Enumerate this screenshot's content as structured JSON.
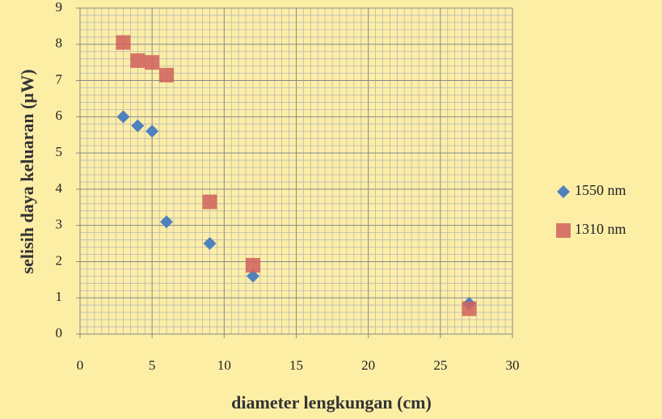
{
  "chart_data": {
    "type": "scatter",
    "xlabel": "diameter lengkungan (cm)",
    "ylabel": "selisih daya keluaran (µW)",
    "xlim": [
      0,
      30
    ],
    "xticks": [
      0,
      5,
      10,
      15,
      20,
      25,
      30
    ],
    "ylim": [
      0,
      9
    ],
    "yticks": [
      0,
      1,
      2,
      3,
      4,
      5,
      6,
      7,
      8,
      9
    ],
    "grid": true,
    "legend": "right",
    "series": [
      {
        "name": "1550 nm",
        "color": "#4f81bd",
        "marker": "diamond",
        "x": [
          3,
          4,
          5,
          6,
          9,
          12,
          27
        ],
        "values": [
          6.0,
          5.75,
          5.6,
          3.1,
          2.5,
          1.6,
          0.85
        ]
      },
      {
        "name": "1310 nm",
        "color": "#d0605c",
        "marker": "square",
        "x": [
          3,
          4,
          5,
          6,
          9,
          12,
          27
        ],
        "values": [
          8.05,
          7.55,
          7.5,
          7.15,
          3.65,
          1.9,
          0.7
        ]
      }
    ]
  }
}
